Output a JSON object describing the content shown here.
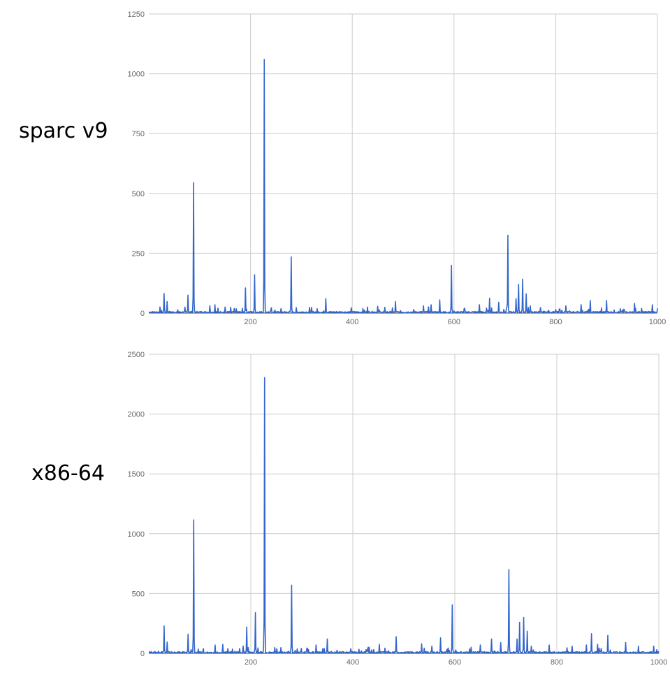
{
  "chart_data": [
    {
      "type": "line",
      "label": "sparc v9",
      "xlim": [
        0,
        1000
      ],
      "ylim": [
        0,
        1250
      ],
      "xticks": [
        "200",
        "400",
        "600",
        "800",
        "1000"
      ],
      "yticks": [
        "0",
        "250",
        "500",
        "750",
        "1000",
        "1250"
      ],
      "line_color": "#3366cc",
      "grid": true,
      "peaks": [
        {
          "x": 30,
          "y": 82
        },
        {
          "x": 36,
          "y": 48
        },
        {
          "x": 77,
          "y": 75
        },
        {
          "x": 88,
          "y": 545
        },
        {
          "x": 120,
          "y": 30
        },
        {
          "x": 130,
          "y": 35
        },
        {
          "x": 150,
          "y": 25
        },
        {
          "x": 190,
          "y": 105
        },
        {
          "x": 208,
          "y": 160
        },
        {
          "x": 227,
          "y": 1060
        },
        {
          "x": 280,
          "y": 235
        },
        {
          "x": 348,
          "y": 60
        },
        {
          "x": 430,
          "y": 25
        },
        {
          "x": 450,
          "y": 28
        },
        {
          "x": 485,
          "y": 48
        },
        {
          "x": 540,
          "y": 30
        },
        {
          "x": 555,
          "y": 35
        },
        {
          "x": 572,
          "y": 55
        },
        {
          "x": 595,
          "y": 200
        },
        {
          "x": 650,
          "y": 35
        },
        {
          "x": 670,
          "y": 62
        },
        {
          "x": 688,
          "y": 45
        },
        {
          "x": 706,
          "y": 325
        },
        {
          "x": 722,
          "y": 60
        },
        {
          "x": 727,
          "y": 120
        },
        {
          "x": 735,
          "y": 142
        },
        {
          "x": 742,
          "y": 80
        },
        {
          "x": 750,
          "y": 30
        },
        {
          "x": 820,
          "y": 30
        },
        {
          "x": 850,
          "y": 35
        },
        {
          "x": 868,
          "y": 52
        },
        {
          "x": 900,
          "y": 52
        },
        {
          "x": 955,
          "y": 40
        },
        {
          "x": 990,
          "y": 35
        }
      ]
    },
    {
      "type": "line",
      "label": "x86-64",
      "xlim": [
        0,
        1000
      ],
      "ylim": [
        0,
        2500
      ],
      "xticks": [
        "200",
        "400",
        "600",
        "800",
        "1000"
      ],
      "yticks": [
        "0",
        "500",
        "1000",
        "1500",
        "2000",
        "2500"
      ],
      "line_color": "#3366cc",
      "grid": true,
      "peaks": [
        {
          "x": 30,
          "y": 230
        },
        {
          "x": 36,
          "y": 95
        },
        {
          "x": 77,
          "y": 160
        },
        {
          "x": 88,
          "y": 1115
        },
        {
          "x": 130,
          "y": 70
        },
        {
          "x": 145,
          "y": 75
        },
        {
          "x": 185,
          "y": 60
        },
        {
          "x": 192,
          "y": 220
        },
        {
          "x": 209,
          "y": 340
        },
        {
          "x": 227,
          "y": 2305
        },
        {
          "x": 280,
          "y": 570
        },
        {
          "x": 328,
          "y": 70
        },
        {
          "x": 350,
          "y": 120
        },
        {
          "x": 430,
          "y": 50
        },
        {
          "x": 452,
          "y": 75
        },
        {
          "x": 485,
          "y": 140
        },
        {
          "x": 535,
          "y": 80
        },
        {
          "x": 555,
          "y": 60
        },
        {
          "x": 572,
          "y": 130
        },
        {
          "x": 595,
          "y": 405
        },
        {
          "x": 650,
          "y": 70
        },
        {
          "x": 672,
          "y": 120
        },
        {
          "x": 690,
          "y": 90
        },
        {
          "x": 706,
          "y": 700
        },
        {
          "x": 722,
          "y": 120
        },
        {
          "x": 727,
          "y": 260
        },
        {
          "x": 735,
          "y": 300
        },
        {
          "x": 742,
          "y": 185
        },
        {
          "x": 750,
          "y": 60
        },
        {
          "x": 785,
          "y": 70
        },
        {
          "x": 830,
          "y": 60
        },
        {
          "x": 858,
          "y": 70
        },
        {
          "x": 868,
          "y": 165
        },
        {
          "x": 880,
          "y": 75
        },
        {
          "x": 900,
          "y": 150
        },
        {
          "x": 935,
          "y": 90
        },
        {
          "x": 960,
          "y": 60
        },
        {
          "x": 990,
          "y": 60
        }
      ]
    }
  ]
}
